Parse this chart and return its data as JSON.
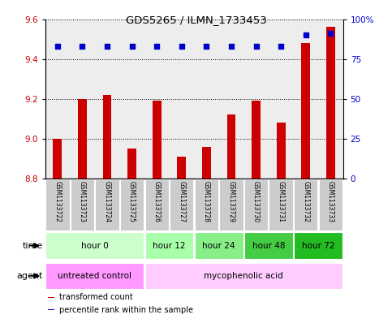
{
  "title": "GDS5265 / ILMN_1733453",
  "samples": [
    "GSM1133722",
    "GSM1133723",
    "GSM1133724",
    "GSM1133725",
    "GSM1133726",
    "GSM1133727",
    "GSM1133728",
    "GSM1133729",
    "GSM1133730",
    "GSM1133731",
    "GSM1133732",
    "GSM1133733"
  ],
  "transformed_count": [
    9.0,
    9.2,
    9.22,
    8.95,
    9.19,
    8.91,
    8.96,
    9.12,
    9.19,
    9.08,
    9.48,
    9.56
  ],
  "percentile_rank": [
    83,
    83,
    83,
    83,
    83,
    83,
    83,
    83,
    83,
    83,
    90,
    91
  ],
  "ylim_left": [
    8.8,
    9.6
  ],
  "ylim_right": [
    0,
    100
  ],
  "yticks_left": [
    8.8,
    9.0,
    9.2,
    9.4,
    9.6
  ],
  "yticks_right": [
    0,
    25,
    50,
    75,
    100
  ],
  "ytick_labels_right": [
    "0",
    "25",
    "50",
    "75",
    "100%"
  ],
  "bar_color": "#cc0000",
  "dot_color": "#0000cc",
  "bar_bottom": 8.8,
  "time_groups": [
    {
      "label": "hour 0",
      "start": 0,
      "end": 3,
      "color": "#ccffcc"
    },
    {
      "label": "hour 12",
      "start": 4,
      "end": 5,
      "color": "#aaffaa"
    },
    {
      "label": "hour 24",
      "start": 6,
      "end": 7,
      "color": "#88ee88"
    },
    {
      "label": "hour 48",
      "start": 8,
      "end": 9,
      "color": "#44cc44"
    },
    {
      "label": "hour 72",
      "start": 10,
      "end": 11,
      "color": "#22bb22"
    }
  ],
  "agent_groups": [
    {
      "label": "untreated control",
      "start": 0,
      "end": 3,
      "color": "#ff99ff"
    },
    {
      "label": "mycophenolic acid",
      "start": 4,
      "end": 11,
      "color": "#ffccff"
    }
  ],
  "legend_items": [
    {
      "label": "transformed count",
      "color": "#cc0000"
    },
    {
      "label": "percentile rank within the sample",
      "color": "#0000cc"
    }
  ],
  "time_label": "time",
  "agent_label": "agent",
  "dot_color_right_axis": "#0000cc",
  "sample_area_color": "#cccccc",
  "bar_width": 0.35,
  "dot_size": 18
}
